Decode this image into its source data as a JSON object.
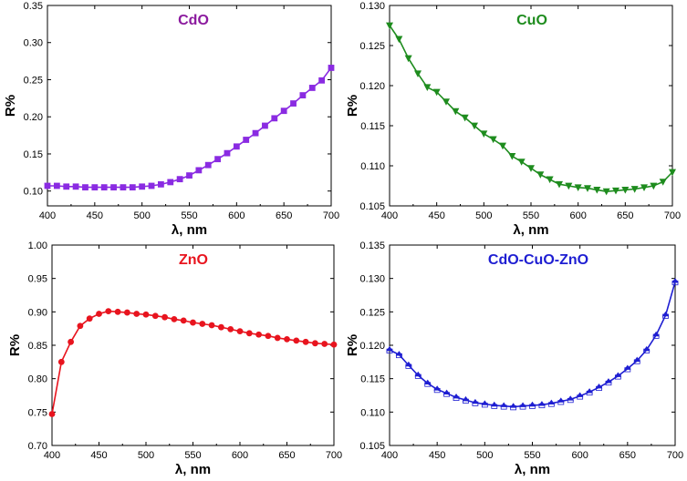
{
  "chart_data": [
    {
      "type": "line",
      "title": "CdO",
      "title_color": "#8B1A9E",
      "color": "#8A2BE2",
      "marker": "square",
      "xlabel": "λ, nm",
      "ylabel": "R%",
      "xlim": [
        400,
        700
      ],
      "ylim": [
        0.08,
        0.35
      ],
      "xticks": [
        400,
        450,
        500,
        550,
        600,
        650,
        700
      ],
      "yticks": [
        0.1,
        0.15,
        0.2,
        0.25,
        0.3,
        0.35
      ],
      "ytick_labels": [
        "0.10",
        "0.15",
        "0.20",
        "0.25",
        "0.30",
        "0.35"
      ],
      "x": [
        400,
        410,
        420,
        430,
        440,
        450,
        460,
        470,
        480,
        490,
        500,
        510,
        520,
        530,
        540,
        550,
        560,
        570,
        580,
        590,
        600,
        610,
        620,
        630,
        640,
        650,
        660,
        670,
        680,
        690,
        700
      ],
      "y": [
        0.107,
        0.107,
        0.106,
        0.106,
        0.105,
        0.105,
        0.105,
        0.105,
        0.105,
        0.105,
        0.106,
        0.107,
        0.109,
        0.112,
        0.116,
        0.121,
        0.128,
        0.135,
        0.143,
        0.151,
        0.16,
        0.169,
        0.178,
        0.188,
        0.198,
        0.208,
        0.218,
        0.229,
        0.239,
        0.249,
        0.266
      ]
    },
    {
      "type": "line",
      "title": "CuO",
      "title_color": "#1E8C1E",
      "color": "#1E8C1E",
      "marker": "triangle-down",
      "xlabel": "λ, nm",
      "ylabel": "R%",
      "xlim": [
        400,
        700
      ],
      "ylim": [
        0.105,
        0.13
      ],
      "xticks": [
        400,
        450,
        500,
        550,
        600,
        650,
        700
      ],
      "yticks": [
        0.105,
        0.11,
        0.115,
        0.12,
        0.125,
        0.13
      ],
      "ytick_labels": [
        "0.105",
        "0.110",
        "0.115",
        "0.120",
        "0.125",
        "0.130"
      ],
      "x": [
        400,
        410,
        420,
        430,
        440,
        450,
        460,
        470,
        480,
        490,
        500,
        510,
        520,
        530,
        540,
        550,
        560,
        570,
        580,
        590,
        600,
        610,
        620,
        630,
        640,
        650,
        660,
        670,
        680,
        690,
        700
      ],
      "y": [
        0.1275,
        0.1258,
        0.1234,
        0.1215,
        0.1198,
        0.1192,
        0.118,
        0.1168,
        0.116,
        0.115,
        0.114,
        0.1133,
        0.1125,
        0.1112,
        0.1105,
        0.1097,
        0.1089,
        0.1083,
        0.1077,
        0.1075,
        0.1073,
        0.1072,
        0.107,
        0.1068,
        0.1069,
        0.107,
        0.1071,
        0.1073,
        0.1075,
        0.108,
        0.1092
      ]
    },
    {
      "type": "line",
      "title": "ZnO",
      "title_color": "#E8141E",
      "color": "#E8141E",
      "marker": "circle",
      "xlabel": "λ, nm",
      "ylabel": "R%",
      "xlim": [
        400,
        700
      ],
      "ylim": [
        0.7,
        1.0
      ],
      "xticks": [
        400,
        450,
        500,
        550,
        600,
        650,
        700
      ],
      "yticks": [
        0.7,
        0.75,
        0.8,
        0.85,
        0.9,
        0.95,
        1.0
      ],
      "ytick_labels": [
        "0.70",
        "0.75",
        "0.80",
        "0.85",
        "0.90",
        "0.95",
        "1.00"
      ],
      "x": [
        400,
        410,
        420,
        430,
        440,
        450,
        460,
        470,
        480,
        490,
        500,
        510,
        520,
        530,
        540,
        550,
        560,
        570,
        580,
        590,
        600,
        610,
        620,
        630,
        640,
        650,
        660,
        670,
        680,
        690,
        700
      ],
      "y": [
        0.747,
        0.825,
        0.855,
        0.879,
        0.89,
        0.897,
        0.901,
        0.9,
        0.899,
        0.897,
        0.896,
        0.894,
        0.892,
        0.889,
        0.887,
        0.884,
        0.882,
        0.88,
        0.877,
        0.874,
        0.871,
        0.868,
        0.866,
        0.864,
        0.861,
        0.859,
        0.857,
        0.855,
        0.853,
        0.852,
        0.851
      ]
    },
    {
      "type": "line",
      "title": "CdO-CuO-ZnO",
      "title_color": "#1E1ED2",
      "color": "#1E1ED2",
      "marker": "triangle-up",
      "xlabel": "λ, nm",
      "ylabel": "R%",
      "xlim": [
        400,
        700
      ],
      "ylim": [
        0.105,
        0.135
      ],
      "xticks": [
        400,
        450,
        500,
        550,
        600,
        650,
        700
      ],
      "yticks": [
        0.105,
        0.11,
        0.115,
        0.12,
        0.125,
        0.13,
        0.135
      ],
      "ytick_labels": [
        "0.105",
        "0.110",
        "0.115",
        "0.120",
        "0.125",
        "0.130",
        "0.135"
      ],
      "x": [
        400,
        410,
        420,
        430,
        440,
        450,
        460,
        470,
        480,
        490,
        500,
        510,
        520,
        530,
        540,
        550,
        560,
        570,
        580,
        590,
        600,
        610,
        620,
        630,
        640,
        650,
        660,
        670,
        680,
        690,
        700
      ],
      "y": [
        0.1193,
        0.1186,
        0.117,
        0.1155,
        0.1143,
        0.1134,
        0.1128,
        0.1122,
        0.1118,
        0.1114,
        0.1112,
        0.111,
        0.1109,
        0.1108,
        0.1109,
        0.111,
        0.1111,
        0.1113,
        0.1116,
        0.1119,
        0.1124,
        0.113,
        0.1137,
        0.1145,
        0.1154,
        0.1165,
        0.1177,
        0.1193,
        0.1215,
        0.1245,
        0.1295
      ]
    }
  ]
}
